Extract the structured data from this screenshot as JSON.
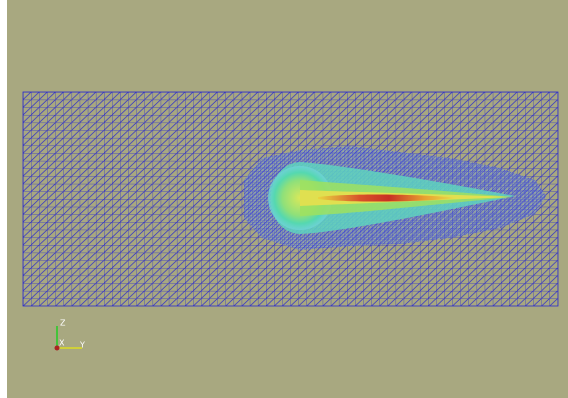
{
  "axes": {
    "z": "Z",
    "x": "X",
    "y": "Y"
  }
}
